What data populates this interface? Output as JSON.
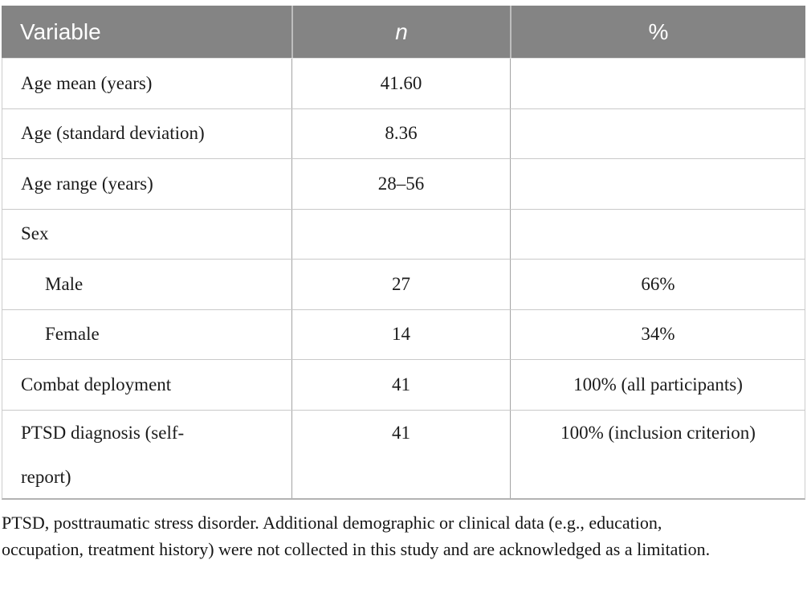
{
  "table": {
    "header": {
      "variable": "Variable",
      "n": "n",
      "pct": "%"
    },
    "rows": [
      {
        "variable": "Age mean (years)",
        "n": "41.60",
        "pct": ""
      },
      {
        "variable": "Age (standard deviation)",
        "n": "8.36",
        "pct": ""
      },
      {
        "variable": "Age range (years)",
        "n": "28–56",
        "pct": ""
      },
      {
        "variable": "Sex",
        "n": "",
        "pct": ""
      },
      {
        "variable": "Male",
        "n": "27",
        "pct": "66%"
      },
      {
        "variable": "Female",
        "n": "14",
        "pct": "34%"
      },
      {
        "variable": "Combat deployment",
        "n": "41",
        "pct": "100% (all participants)"
      },
      {
        "variable": "PTSD diagnosis (self-\nreport)",
        "n": "41",
        "pct": "100% (inclusion criterion)"
      }
    ],
    "footnote": "PTSD, posttraumatic stress disorder. Additional demographic or clinical data (e.g., education, occupation, treatment history) were not collected in this study and are acknowledged as a limitation."
  },
  "colors": {
    "header_bg": "#848484",
    "header_text": "#ffffff",
    "row_border": "#c9c9c9",
    "column_border": "#a3a3a3",
    "bottom_border": "#b3b3b3",
    "body_text": "#1b1b1b"
  }
}
